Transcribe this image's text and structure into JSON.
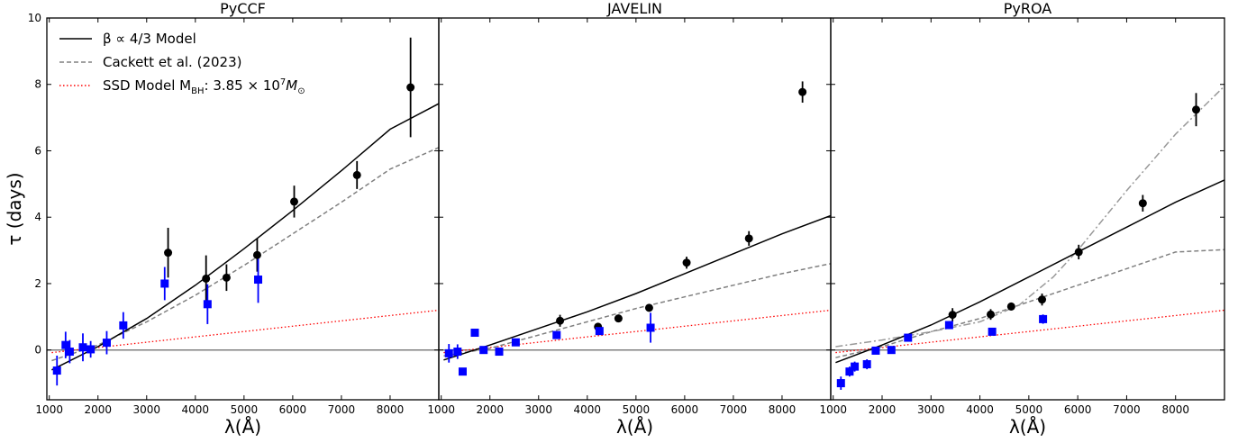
{
  "chart_data": {
    "type": "scatter",
    "ylabel": "τ (days)",
    "xlabel": "λ(Å)",
    "ylim": [
      -1.5,
      10
    ],
    "xlim": [
      950,
      9000
    ],
    "yticks": [
      0,
      2,
      4,
      6,
      8,
      10
    ],
    "xticks": [
      1000,
      2000,
      3000,
      4000,
      5000,
      6000,
      7000,
      8000
    ],
    "legend": {
      "position": "top-left",
      "entries": [
        {
          "label": "β ∝ 4/3 Model",
          "color": "#000000",
          "style": "solid"
        },
        {
          "label": "Cackett et al. (2023)",
          "color": "#808080",
          "style": "dashed"
        },
        {
          "label": "SSD Model M",
          "sub": "BH",
          "rest": ": 3.85 × 10",
          "sup": "7",
          "tail": "M",
          "tailsub": "⊙",
          "color": "#ff0000",
          "style": "dotted"
        }
      ]
    },
    "panels": [
      {
        "title": "PyCCF",
        "blue_squares": [
          {
            "x": 1158,
            "y": -0.62,
            "err": 0.45
          },
          {
            "x": 1335,
            "y": 0.15,
            "err": 0.4
          },
          {
            "x": 1420,
            "y": -0.05,
            "err": 0.35
          },
          {
            "x": 1690,
            "y": 0.08,
            "err": 0.42
          },
          {
            "x": 1850,
            "y": 0.02,
            "err": 0.25
          },
          {
            "x": 2180,
            "y": 0.22,
            "err": 0.35
          },
          {
            "x": 2520,
            "y": 0.74,
            "err": 0.4
          },
          {
            "x": 3370,
            "y": 2.0,
            "err": 0.5
          },
          {
            "x": 4250,
            "y": 1.38,
            "err": 0.6
          },
          {
            "x": 5290,
            "y": 2.12,
            "err": 0.7
          }
        ],
        "black_circles": [
          {
            "x": 3440,
            "y": 2.93,
            "err": 0.75
          },
          {
            "x": 4220,
            "y": 2.15,
            "err": 0.7
          },
          {
            "x": 4640,
            "y": 2.18,
            "err": 0.4
          },
          {
            "x": 5270,
            "y": 2.86,
            "err": 0.5
          },
          {
            "x": 6030,
            "y": 4.47,
            "err": 0.48
          },
          {
            "x": 7320,
            "y": 5.27,
            "err": 0.42
          },
          {
            "x": 8420,
            "y": 7.91,
            "err": 1.5
          }
        ],
        "model_line": [
          [
            1050,
            -0.6
          ],
          [
            2000,
            0.1
          ],
          [
            3000,
            0.95
          ],
          [
            4000,
            1.95
          ],
          [
            5000,
            3.05
          ],
          [
            6000,
            4.2
          ],
          [
            7000,
            5.4
          ],
          [
            8000,
            6.65
          ],
          [
            9000,
            7.42
          ]
        ],
        "cackett_line": [
          [
            1050,
            -0.32
          ],
          [
            2000,
            0.15
          ],
          [
            3000,
            0.85
          ],
          [
            4000,
            1.65
          ],
          [
            5000,
            2.55
          ],
          [
            6000,
            3.5
          ],
          [
            7000,
            4.45
          ],
          [
            8000,
            5.45
          ],
          [
            9000,
            6.1
          ]
        ],
        "ssd_line": [
          [
            1050,
            -0.08
          ],
          [
            9000,
            1.2
          ]
        ]
      },
      {
        "title": "JAVELIN",
        "blue_squares": [
          {
            "x": 1158,
            "y": -0.1,
            "err": 0.28
          },
          {
            "x": 1335,
            "y": -0.05,
            "err": 0.22
          },
          {
            "x": 1440,
            "y": -0.65,
            "err": 0.06
          },
          {
            "x": 1690,
            "y": 0.52,
            "err": 0.06
          },
          {
            "x": 1870,
            "y": 0.0,
            "err": 0.06
          },
          {
            "x": 2190,
            "y": -0.05,
            "err": 0.06
          },
          {
            "x": 2530,
            "y": 0.23,
            "err": 0.06
          },
          {
            "x": 3370,
            "y": 0.45,
            "err": 0.06
          },
          {
            "x": 4250,
            "y": 0.57,
            "err": 0.06
          },
          {
            "x": 5300,
            "y": 0.67,
            "err": 0.45
          }
        ],
        "black_circles": [
          {
            "x": 3440,
            "y": 0.88,
            "err": 0.18
          },
          {
            "x": 4220,
            "y": 0.7,
            "err": 0.08
          },
          {
            "x": 4640,
            "y": 0.95,
            "err": 0.08
          },
          {
            "x": 5270,
            "y": 1.27,
            "err": 0.08
          },
          {
            "x": 6040,
            "y": 2.63,
            "err": 0.18
          },
          {
            "x": 7320,
            "y": 3.36,
            "err": 0.22
          },
          {
            "x": 8420,
            "y": 7.77,
            "err": 0.32
          }
        ],
        "model_line": [
          [
            1050,
            -0.3
          ],
          [
            2000,
            0.15
          ],
          [
            3000,
            0.65
          ],
          [
            4000,
            1.15
          ],
          [
            5000,
            1.7
          ],
          [
            6000,
            2.3
          ],
          [
            7000,
            2.9
          ],
          [
            8000,
            3.5
          ],
          [
            9000,
            4.05
          ]
        ],
        "cackett_line": [
          [
            1050,
            -0.18
          ],
          [
            2000,
            0.05
          ],
          [
            3000,
            0.45
          ],
          [
            4000,
            0.85
          ],
          [
            5000,
            1.25
          ],
          [
            6000,
            1.6
          ],
          [
            7000,
            1.95
          ],
          [
            8000,
            2.3
          ],
          [
            9000,
            2.6
          ]
        ],
        "ssd_line": [
          [
            1050,
            -0.08
          ],
          [
            9000,
            1.2
          ]
        ]
      },
      {
        "title": "PyROA",
        "blue_squares": [
          {
            "x": 1158,
            "y": -1.0,
            "err": 0.2
          },
          {
            "x": 1335,
            "y": -0.65,
            "err": 0.15
          },
          {
            "x": 1440,
            "y": -0.5,
            "err": 0.15
          },
          {
            "x": 1690,
            "y": -0.43,
            "err": 0.15
          },
          {
            "x": 1870,
            "y": -0.02,
            "err": 0.08
          },
          {
            "x": 2190,
            "y": 0.0,
            "err": 0.06
          },
          {
            "x": 2530,
            "y": 0.37,
            "err": 0.06
          },
          {
            "x": 3370,
            "y": 0.75,
            "err": 0.12
          },
          {
            "x": 4250,
            "y": 0.55,
            "err": 0.1
          },
          {
            "x": 5290,
            "y": 0.93,
            "err": 0.14
          }
        ],
        "black_circles": [
          {
            "x": 3440,
            "y": 1.06,
            "err": 0.2
          },
          {
            "x": 4220,
            "y": 1.07,
            "err": 0.16
          },
          {
            "x": 4640,
            "y": 1.31,
            "err": 0.12
          },
          {
            "x": 5270,
            "y": 1.52,
            "err": 0.18
          },
          {
            "x": 6020,
            "y": 2.95,
            "err": 0.22
          },
          {
            "x": 7330,
            "y": 4.42,
            "err": 0.25
          },
          {
            "x": 8420,
            "y": 7.24,
            "err": 0.5
          }
        ],
        "model_line": [
          [
            1050,
            -0.38
          ],
          [
            2000,
            0.15
          ],
          [
            3000,
            0.75
          ],
          [
            4000,
            1.45
          ],
          [
            5000,
            2.2
          ],
          [
            6000,
            2.95
          ],
          [
            7000,
            3.7
          ],
          [
            8000,
            4.45
          ],
          [
            9000,
            5.12
          ]
        ],
        "cackett_line": [
          [
            1050,
            -0.23
          ],
          [
            2000,
            0.1
          ],
          [
            3000,
            0.55
          ],
          [
            4000,
            0.95
          ],
          [
            5000,
            1.45
          ],
          [
            6000,
            1.95
          ],
          [
            7000,
            2.45
          ],
          [
            8000,
            2.95
          ],
          [
            9000,
            3.02
          ]
        ],
        "ssd_line": [
          [
            1050,
            -0.08
          ],
          [
            9000,
            1.2
          ]
        ],
        "dashdot_line": [
          [
            1050,
            0.1
          ],
          [
            2000,
            0.3
          ],
          [
            3000,
            0.55
          ],
          [
            4000,
            0.85
          ],
          [
            4800,
            1.35
          ],
          [
            5500,
            2.2
          ],
          [
            6000,
            3.0
          ],
          [
            7000,
            4.8
          ],
          [
            8000,
            6.5
          ],
          [
            9000,
            7.95
          ]
        ]
      }
    ]
  }
}
